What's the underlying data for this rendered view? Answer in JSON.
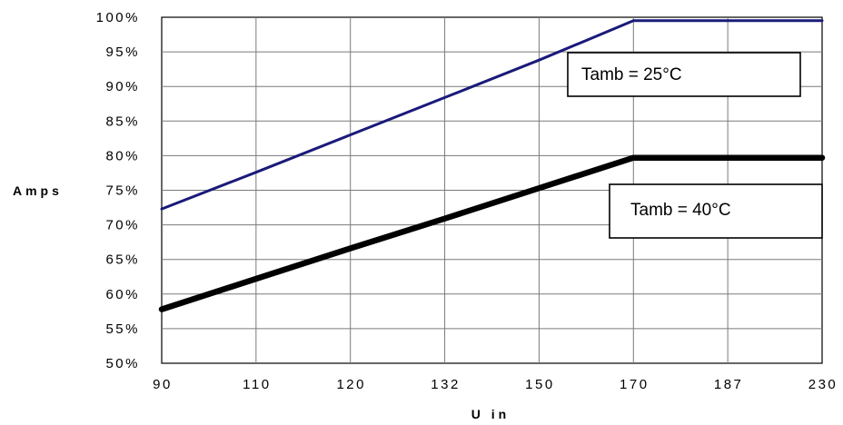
{
  "chart_data": {
    "type": "line",
    "xlabel": "U in",
    "ylabel": "Amps",
    "categories": [
      "90",
      "110",
      "120",
      "132",
      "150",
      "170",
      "187",
      "230"
    ],
    "y_ticks": [
      "50%",
      "55%",
      "60%",
      "65%",
      "70%",
      "75%",
      "80%",
      "85%",
      "90%",
      "95%",
      "100%"
    ],
    "ylim": [
      50,
      100
    ],
    "grid": true,
    "series": [
      {
        "name": "Tamb = 25°C",
        "color": "#1a1a7a",
        "values": [
          72.3,
          77.6,
          83.0,
          88.4,
          93.8,
          99.5,
          99.5,
          99.5
        ]
      },
      {
        "name": "Tamb = 40°C",
        "color": "#000000",
        "values": [
          57.8,
          62.2,
          66.6,
          70.9,
          75.3,
          79.7,
          79.7,
          79.7
        ]
      }
    ]
  }
}
